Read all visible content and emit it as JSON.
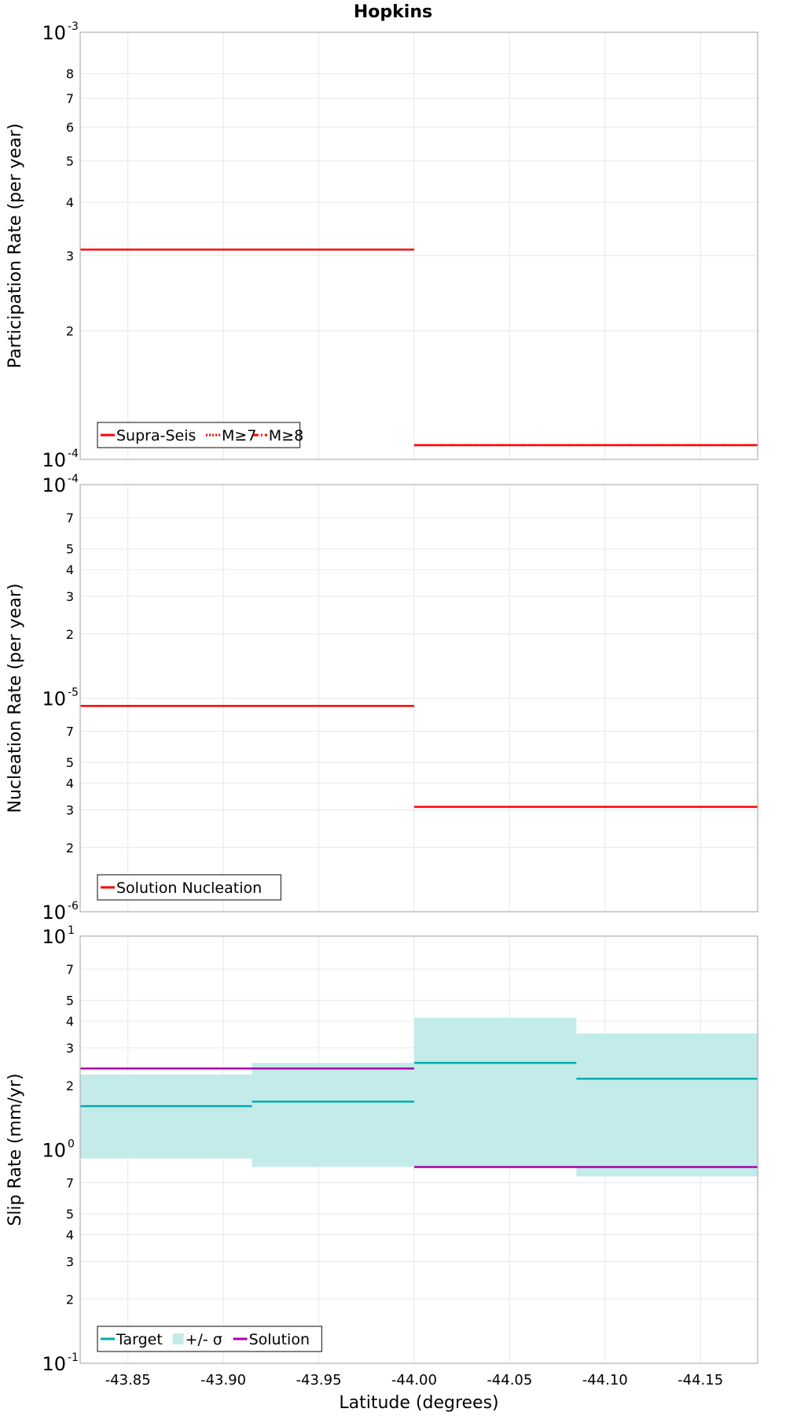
{
  "chart_data": {
    "title": "Hopkins",
    "xlabel": "Latitude (degrees)",
    "xlim": [
      -43.825,
      -44.18
    ],
    "x_tick_labels": [
      "-43.85",
      "-43.90",
      "-43.95",
      "-44.00",
      "-44.05",
      "-44.10",
      "-44.15"
    ],
    "x_ticks": [
      -43.85,
      -43.9,
      -43.95,
      -44.0,
      -44.05,
      -44.1,
      -44.15
    ],
    "panels": [
      {
        "type": "line",
        "ylabel": "Participation Rate (per year)",
        "yscale": "log",
        "ylim": [
          0.0001,
          0.001
        ],
        "y_major": [
          {
            "base": "10",
            "exp": "-4",
            "value": 0.0001
          },
          {
            "base": "10",
            "exp": "-3",
            "value": 0.001
          }
        ],
        "y_minor": [
          {
            "label": "2",
            "value": 0.0002
          },
          {
            "label": "3",
            "value": 0.0003
          },
          {
            "label": "4",
            "value": 0.0004
          },
          {
            "label": "5",
            "value": 0.0005
          },
          {
            "label": "6",
            "value": 0.0006
          },
          {
            "label": "7",
            "value": 0.0007
          },
          {
            "label": "8",
            "value": 0.0008
          }
        ],
        "legend_position": "bottom-left",
        "series": [
          {
            "name": "Supra-Seis",
            "style": "solid",
            "color": "#ff0000",
            "segments": [
              {
                "x": [
                  -43.825,
                  -44.0
                ],
                "y": 0.00031
              },
              {
                "x": [
                  -44.0,
                  -44.18
                ],
                "y": 0.000108
              }
            ]
          },
          {
            "name": "M≥7",
            "style": "dotted",
            "color": "#ff0000",
            "segments": [
              {
                "x": [
                  -43.825,
                  -44.0
                ],
                "y": 0.00031
              },
              {
                "x": [
                  -44.0,
                  -44.18
                ],
                "y": 0.000108
              }
            ]
          },
          {
            "name": "M≥8",
            "style": "dashdot",
            "color": "#ff0000",
            "segments": [
              {
                "x": [
                  -43.825,
                  -44.0
                ],
                "y": 0.00031
              },
              {
                "x": [
                  -44.0,
                  -44.18
                ],
                "y": 0.000108
              }
            ]
          }
        ]
      },
      {
        "type": "line",
        "ylabel": "Nucleation Rate (per year)",
        "yscale": "log",
        "ylim": [
          1e-06,
          0.0001
        ],
        "y_major": [
          {
            "base": "10",
            "exp": "-6",
            "value": 1e-06
          },
          {
            "base": "10",
            "exp": "-5",
            "value": 1e-05
          },
          {
            "base": "10",
            "exp": "-4",
            "value": 0.0001
          }
        ],
        "y_minor": [
          {
            "label": "2",
            "value": 2e-06
          },
          {
            "label": "3",
            "value": 3e-06
          },
          {
            "label": "4",
            "value": 4e-06
          },
          {
            "label": "5",
            "value": 5e-06
          },
          {
            "label": "7",
            "value": 7e-06
          },
          {
            "label": "2",
            "value": 2e-05
          },
          {
            "label": "3",
            "value": 3e-05
          },
          {
            "label": "4",
            "value": 4e-05
          },
          {
            "label": "5",
            "value": 5e-05
          },
          {
            "label": "7",
            "value": 7e-05
          }
        ],
        "legend_position": "bottom-left",
        "series": [
          {
            "name": "Solution Nucleation",
            "style": "solid",
            "color": "#ff0000",
            "segments": [
              {
                "x": [
                  -43.825,
                  -44.0
                ],
                "y": 9.2e-06
              },
              {
                "x": [
                  -44.0,
                  -44.18
                ],
                "y": 3.1e-06
              }
            ]
          }
        ]
      },
      {
        "type": "line",
        "ylabel": "Slip Rate (mm/yr)",
        "yscale": "log",
        "ylim": [
          0.1,
          10
        ],
        "y_major": [
          {
            "base": "10",
            "exp": "-1",
            "value": 0.1
          },
          {
            "base": "10",
            "exp": "0",
            "value": 1
          },
          {
            "base": "10",
            "exp": "1",
            "value": 10
          }
        ],
        "y_minor": [
          {
            "label": "2",
            "value": 0.2
          },
          {
            "label": "3",
            "value": 0.3
          },
          {
            "label": "4",
            "value": 0.4
          },
          {
            "label": "5",
            "value": 0.5
          },
          {
            "label": "7",
            "value": 0.7
          },
          {
            "label": "2",
            "value": 2
          },
          {
            "label": "3",
            "value": 3
          },
          {
            "label": "4",
            "value": 4
          },
          {
            "label": "5",
            "value": 5
          },
          {
            "label": "7",
            "value": 7
          }
        ],
        "legend_position": "bottom-left",
        "band": {
          "name": "+/- σ",
          "color": "#c3ebea",
          "segments": [
            {
              "x": [
                -43.825,
                -43.915
              ],
              "low": 0.91,
              "high": 2.25
            },
            {
              "x": [
                -43.915,
                -44.0
              ],
              "low": 0.83,
              "high": 2.55
            },
            {
              "x": [
                -44.0,
                -44.085
              ],
              "low": 0.83,
              "high": 4.15
            },
            {
              "x": [
                -44.085,
                -44.18
              ],
              "low": 0.75,
              "high": 3.5
            }
          ]
        },
        "series": [
          {
            "name": "Target",
            "style": "solid",
            "color": "#00aaaa",
            "segments": [
              {
                "x": [
                  -43.825,
                  -43.915
                ],
                "y": 1.6
              },
              {
                "x": [
                  -43.915,
                  -44.0
                ],
                "y": 1.68
              },
              {
                "x": [
                  -44.0,
                  -44.085
                ],
                "y": 2.55
              },
              {
                "x": [
                  -44.085,
                  -44.18
                ],
                "y": 2.15
              }
            ]
          },
          {
            "name": "Solution",
            "style": "solid",
            "color": "#aa00aa",
            "segments": [
              {
                "x": [
                  -43.825,
                  -44.0
                ],
                "y": 2.4
              },
              {
                "x": [
                  -44.0,
                  -44.18
                ],
                "y": 0.83
              }
            ]
          }
        ]
      }
    ]
  }
}
